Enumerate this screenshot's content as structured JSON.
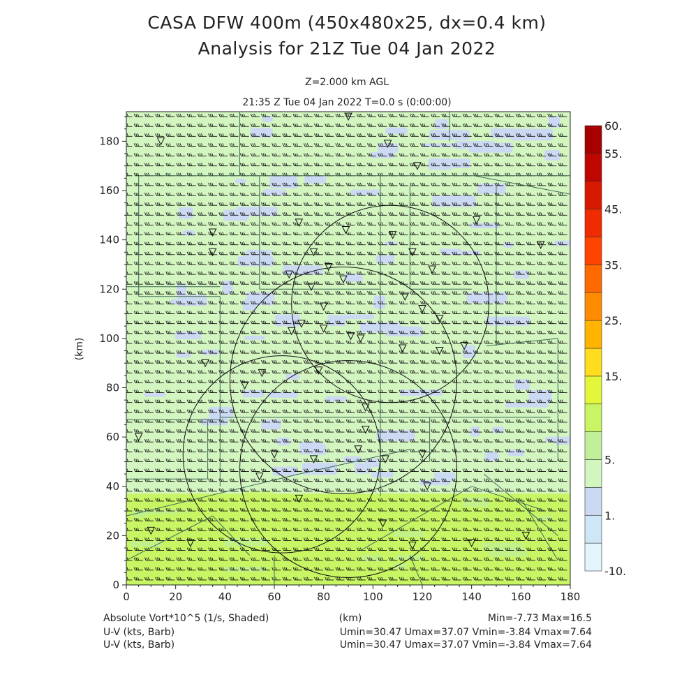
{
  "title_line1": "CASA DFW 400m (450x480x25, dx=0.4 km)",
  "title_line2": "Analysis for 21Z Tue 04 Jan 2022",
  "level_label": "Z=2.000 km AGL",
  "time_label": "21:35 Z Tue 04 Jan 2022    T=0.0 s (0:00:00)",
  "footer": {
    "field_label": "Absolute Vort*10^5 (1/s, Shaded)",
    "xunit_label": "(km)",
    "minmax": "Min=-7.73 Max=16.5",
    "barb_label_1": "U-V (kts, Barb)",
    "barb_stats_1": "Umin=30.47 Umax=37.07 Vmin=-3.84 Vmax=7.64",
    "barb_label_2": "U-V (kts, Barb)",
    "barb_stats_2": "Umin=30.47 Umax=37.07 Vmin=-3.84 Vmax=7.64"
  },
  "chart_data": {
    "type": "heatmap",
    "xlabel": "",
    "ylabel": "(km)",
    "xlim": [
      0,
      180
    ],
    "ylim": [
      0,
      192
    ],
    "xticks": [
      0,
      20,
      40,
      60,
      80,
      100,
      120,
      140,
      160,
      180
    ],
    "yticks": [
      0,
      20,
      40,
      60,
      80,
      100,
      120,
      140,
      160,
      180
    ],
    "colorbar": {
      "levels": [
        -10,
        -1,
        1,
        3,
        5,
        8,
        10,
        15,
        20,
        25,
        30,
        35,
        40,
        45,
        50,
        55,
        60
      ],
      "labels": [
        "-10.",
        "1.",
        "5.",
        "15.",
        "25.",
        "35.",
        "45.",
        "55.",
        "60."
      ],
      "label_levels": [
        -10,
        1,
        5,
        15,
        25,
        35,
        45,
        55,
        60
      ],
      "colors": [
        "#e4f4fb",
        "#cfe6f7",
        "#ccd9f3",
        "#d3f5c0",
        "#bff099",
        "#c8f564",
        "#e3f73a",
        "#ffdc1e",
        "#ffb400",
        "#ff8c00",
        "#ff6a00",
        "#ff4400",
        "#f02b00",
        "#d91800",
        "#c00600",
        "#a60000"
      ]
    },
    "field_regions": [
      {
        "name": "southern higher-vorticity band",
        "y_range": [
          0,
          37
        ],
        "value_approx": 8
      },
      {
        "name": "northern mixed band",
        "y_range": [
          37,
          192
        ],
        "value_approx": 3
      }
    ],
    "barbs": {
      "u_range_kts": [
        30.47,
        37.07
      ],
      "v_range_kts": [
        -3.84,
        7.64
      ]
    },
    "radar_rings": [
      {
        "center_km": [
          107,
          114
        ],
        "radius_km": 40
      },
      {
        "center_km": [
          88,
          83
        ],
        "radius_km": 46
      },
      {
        "center_km": [
          63,
          53
        ],
        "radius_km": 40
      },
      {
        "center_km": [
          90,
          47
        ],
        "radius_km": 44
      }
    ],
    "stations": [
      [
        14,
        180
      ],
      [
        90,
        190
      ],
      [
        106,
        179
      ],
      [
        118,
        170
      ],
      [
        35,
        143
      ],
      [
        35,
        135
      ],
      [
        70,
        147
      ],
      [
        76,
        135
      ],
      [
        89,
        144
      ],
      [
        82,
        129
      ],
      [
        88,
        124
      ],
      [
        108,
        142
      ],
      [
        116,
        135
      ],
      [
        124,
        128
      ],
      [
        113,
        117
      ],
      [
        120,
        112
      ],
      [
        127,
        108
      ],
      [
        66,
        126
      ],
      [
        75,
        121
      ],
      [
        80,
        113
      ],
      [
        67,
        103
      ],
      [
        71,
        106
      ],
      [
        80,
        104
      ],
      [
        91,
        101
      ],
      [
        95,
        100
      ],
      [
        112,
        96
      ],
      [
        127,
        95
      ],
      [
        137,
        97
      ],
      [
        32,
        90
      ],
      [
        55,
        86
      ],
      [
        48,
        81
      ],
      [
        78,
        87
      ],
      [
        97,
        72
      ],
      [
        97,
        63
      ],
      [
        94,
        55
      ],
      [
        105,
        51
      ],
      [
        120,
        53
      ],
      [
        60,
        53
      ],
      [
        76,
        51
      ],
      [
        54,
        44
      ],
      [
        70,
        35
      ],
      [
        10,
        22
      ],
      [
        26,
        17
      ],
      [
        104,
        25
      ],
      [
        116,
        16
      ],
      [
        140,
        17
      ],
      [
        162,
        20
      ],
      [
        5,
        60
      ],
      [
        122,
        40
      ],
      [
        142,
        148
      ],
      [
        168,
        138
      ]
    ]
  }
}
